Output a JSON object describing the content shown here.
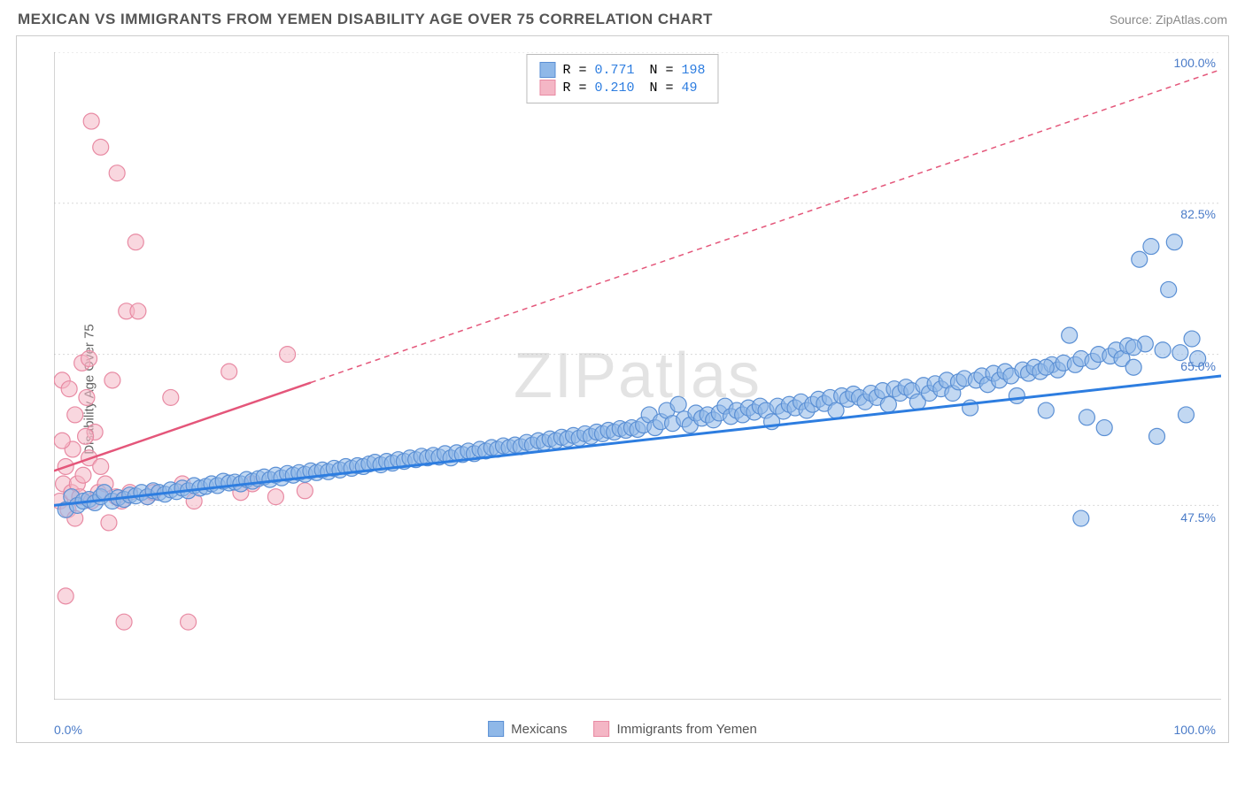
{
  "header": {
    "title": "MEXICAN VS IMMIGRANTS FROM YEMEN DISABILITY AGE OVER 75 CORRELATION CHART",
    "source": "Source: ZipAtlas.com"
  },
  "watermark": "ZIPatlas",
  "chart": {
    "type": "scatter",
    "y_axis_label": "Disability Age Over 75",
    "xlim": [
      0,
      100
    ],
    "ylim": [
      25,
      100
    ],
    "x_ticks": [
      0,
      100
    ],
    "x_tick_labels": [
      "0.0%",
      "100.0%"
    ],
    "y_ticks": [
      47.5,
      65.0,
      82.5,
      100.0
    ],
    "y_tick_labels": [
      "47.5%",
      "65.0%",
      "82.5%",
      "100.0%"
    ],
    "grid_color": "#d8d8d8",
    "background_color": "#ffffff",
    "series": [
      {
        "name": "Mexicans",
        "color_fill": "#8fb8e8",
        "color_stroke": "#5a8fd4",
        "fill_opacity": 0.55,
        "marker_radius": 9,
        "trend_color": "#2d7de0",
        "trend_width": 3,
        "trend_start": [
          0,
          47.5
        ],
        "trend_end": [
          100,
          62.5
        ],
        "R": "0.771",
        "N": "198",
        "points": [
          [
            1,
            47
          ],
          [
            1.5,
            48.5
          ],
          [
            2,
            47.5
          ],
          [
            2.5,
            48
          ],
          [
            3,
            48.2
          ],
          [
            3.5,
            47.8
          ],
          [
            4,
            48.5
          ],
          [
            4.3,
            49
          ],
          [
            5,
            48
          ],
          [
            5.5,
            48.4
          ],
          [
            6,
            48.2
          ],
          [
            6.5,
            48.7
          ],
          [
            7,
            48.6
          ],
          [
            7.5,
            49
          ],
          [
            8,
            48.5
          ],
          [
            8.5,
            49.2
          ],
          [
            9,
            49
          ],
          [
            9.5,
            48.8
          ],
          [
            10,
            49.3
          ],
          [
            10.5,
            49.1
          ],
          [
            11,
            49.5
          ],
          [
            11.5,
            49.2
          ],
          [
            12,
            49.8
          ],
          [
            12.5,
            49.5
          ],
          [
            13,
            49.7
          ],
          [
            13.5,
            50
          ],
          [
            14,
            49.8
          ],
          [
            14.5,
            50.3
          ],
          [
            15,
            50.1
          ],
          [
            15.5,
            50.2
          ],
          [
            16,
            50
          ],
          [
            16.5,
            50.5
          ],
          [
            17,
            50.3
          ],
          [
            17.5,
            50.6
          ],
          [
            18,
            50.8
          ],
          [
            18.5,
            50.5
          ],
          [
            19,
            51
          ],
          [
            19.5,
            50.7
          ],
          [
            20,
            51.2
          ],
          [
            20.5,
            51
          ],
          [
            21,
            51.3
          ],
          [
            21.5,
            51.1
          ],
          [
            22,
            51.5
          ],
          [
            22.5,
            51.3
          ],
          [
            23,
            51.6
          ],
          [
            23.5,
            51.4
          ],
          [
            24,
            51.8
          ],
          [
            24.5,
            51.6
          ],
          [
            25,
            52
          ],
          [
            25.5,
            51.8
          ],
          [
            26,
            52.1
          ],
          [
            26.5,
            52
          ],
          [
            27,
            52.3
          ],
          [
            27.5,
            52.5
          ],
          [
            28,
            52.2
          ],
          [
            28.5,
            52.6
          ],
          [
            29,
            52.4
          ],
          [
            29.5,
            52.8
          ],
          [
            30,
            52.6
          ],
          [
            30.5,
            53
          ],
          [
            31,
            52.8
          ],
          [
            31.5,
            53.2
          ],
          [
            32,
            53
          ],
          [
            32.5,
            53.3
          ],
          [
            33,
            53.1
          ],
          [
            33.5,
            53.5
          ],
          [
            34,
            53
          ],
          [
            34.5,
            53.6
          ],
          [
            35,
            53.4
          ],
          [
            35.5,
            53.8
          ],
          [
            36,
            53.5
          ],
          [
            36.5,
            54
          ],
          [
            37,
            53.8
          ],
          [
            37.5,
            54.2
          ],
          [
            38,
            54
          ],
          [
            38.5,
            54.4
          ],
          [
            39,
            54.2
          ],
          [
            39.5,
            54.5
          ],
          [
            40,
            54.3
          ],
          [
            40.5,
            54.8
          ],
          [
            41,
            54.5
          ],
          [
            41.5,
            55
          ],
          [
            42,
            54.8
          ],
          [
            42.5,
            55.2
          ],
          [
            43,
            55
          ],
          [
            43.5,
            55.4
          ],
          [
            44,
            55.2
          ],
          [
            44.5,
            55.6
          ],
          [
            45,
            55.3
          ],
          [
            45.5,
            55.8
          ],
          [
            46,
            55.5
          ],
          [
            46.5,
            56
          ],
          [
            47,
            55.8
          ],
          [
            47.5,
            56.2
          ],
          [
            48,
            56
          ],
          [
            48.5,
            56.4
          ],
          [
            49,
            56.2
          ],
          [
            49.5,
            56.5
          ],
          [
            50,
            56.3
          ],
          [
            50.5,
            56.8
          ],
          [
            51,
            58
          ],
          [
            51.5,
            56.5
          ],
          [
            52,
            57.2
          ],
          [
            52.5,
            58.5
          ],
          [
            53,
            57
          ],
          [
            53.5,
            59.2
          ],
          [
            54,
            57.5
          ],
          [
            54.5,
            56.8
          ],
          [
            55,
            58.2
          ],
          [
            55.5,
            57.6
          ],
          [
            56,
            58
          ],
          [
            56.5,
            57.4
          ],
          [
            57,
            58.2
          ],
          [
            57.5,
            59
          ],
          [
            58,
            57.8
          ],
          [
            58.5,
            58.5
          ],
          [
            59,
            58
          ],
          [
            59.5,
            58.8
          ],
          [
            60,
            58.3
          ],
          [
            60.5,
            59
          ],
          [
            61,
            58.5
          ],
          [
            61.5,
            57.2
          ],
          [
            62,
            59
          ],
          [
            62.5,
            58.4
          ],
          [
            63,
            59.2
          ],
          [
            63.5,
            58.8
          ],
          [
            64,
            59.5
          ],
          [
            64.5,
            58.5
          ],
          [
            65,
            59.2
          ],
          [
            65.5,
            59.8
          ],
          [
            66,
            59.3
          ],
          [
            66.5,
            60
          ],
          [
            67,
            58.5
          ],
          [
            67.5,
            60.2
          ],
          [
            68,
            59.8
          ],
          [
            68.5,
            60.4
          ],
          [
            69,
            60
          ],
          [
            69.5,
            59.5
          ],
          [
            70,
            60.5
          ],
          [
            70.5,
            60
          ],
          [
            71,
            60.8
          ],
          [
            71.5,
            59.2
          ],
          [
            72,
            61
          ],
          [
            72.5,
            60.5
          ],
          [
            73,
            61.2
          ],
          [
            73.5,
            60.8
          ],
          [
            74,
            59.5
          ],
          [
            74.5,
            61.4
          ],
          [
            75,
            60.5
          ],
          [
            75.5,
            61.6
          ],
          [
            76,
            61
          ],
          [
            76.5,
            62
          ],
          [
            77,
            60.5
          ],
          [
            77.5,
            61.8
          ],
          [
            78,
            62.2
          ],
          [
            78.5,
            58.8
          ],
          [
            79,
            62
          ],
          [
            79.5,
            62.5
          ],
          [
            80,
            61.5
          ],
          [
            80.5,
            62.8
          ],
          [
            81,
            62
          ],
          [
            81.5,
            63
          ],
          [
            82,
            62.5
          ],
          [
            82.5,
            60.2
          ],
          [
            83,
            63.2
          ],
          [
            83.5,
            62.8
          ],
          [
            84,
            63.5
          ],
          [
            84.5,
            63
          ],
          [
            85,
            58.5
          ],
          [
            85.5,
            63.8
          ],
          [
            86,
            63.2
          ],
          [
            86.5,
            64
          ],
          [
            87,
            67.2
          ],
          [
            87.5,
            63.8
          ],
          [
            88,
            64.5
          ],
          [
            88.5,
            57.7
          ],
          [
            89,
            64.2
          ],
          [
            89.5,
            65
          ],
          [
            90,
            56.5
          ],
          [
            90.5,
            64.8
          ],
          [
            91,
            65.5
          ],
          [
            91.5,
            64.5
          ],
          [
            92,
            66
          ],
          [
            92.5,
            63.5
          ],
          [
            93,
            76
          ],
          [
            93.5,
            66.2
          ],
          [
            94,
            77.5
          ],
          [
            94.5,
            55.5
          ],
          [
            95,
            65.5
          ],
          [
            95.5,
            72.5
          ],
          [
            96,
            78
          ],
          [
            96.5,
            65.2
          ],
          [
            97,
            58
          ],
          [
            97.5,
            66.8
          ],
          [
            98,
            64.5
          ],
          [
            92.5,
            65.8
          ],
          [
            88,
            46
          ],
          [
            85,
            63.5
          ]
        ]
      },
      {
        "name": "Immigrants from Yemen",
        "color_fill": "#f4b6c5",
        "color_stroke": "#e88aa3",
        "fill_opacity": 0.55,
        "marker_radius": 9,
        "trend_color": "#e4567a",
        "trend_width": 2.5,
        "trend_dash_from": 22,
        "trend_start": [
          0,
          51.5
        ],
        "trend_end": [
          100,
          98
        ],
        "R": "0.210",
        "N": " 49",
        "points": [
          [
            0.5,
            48
          ],
          [
            0.7,
            62
          ],
          [
            0.8,
            50
          ],
          [
            1,
            52
          ],
          [
            1.2,
            47
          ],
          [
            1.3,
            61
          ],
          [
            1.5,
            49
          ],
          [
            1.6,
            54
          ],
          [
            1.8,
            58
          ],
          [
            2,
            50
          ],
          [
            0.7,
            55
          ],
          [
            2.2,
            48.5
          ],
          [
            2.4,
            64
          ],
          [
            2.5,
            51
          ],
          [
            2.8,
            60
          ],
          [
            3,
            53
          ],
          [
            3.2,
            48
          ],
          [
            3.5,
            56
          ],
          [
            3.8,
            49
          ],
          [
            4,
            52
          ],
          [
            4.4,
            50
          ],
          [
            4.7,
            45.5
          ],
          [
            5,
            62
          ],
          [
            5.3,
            48.5
          ],
          [
            1.8,
            46
          ],
          [
            5.8,
            48
          ],
          [
            6,
            34
          ],
          [
            6.2,
            70
          ],
          [
            6.5,
            49
          ],
          [
            7,
            78
          ],
          [
            7.2,
            70
          ],
          [
            8,
            48.5
          ],
          [
            8.5,
            49
          ],
          [
            3,
            64.5
          ],
          [
            10,
            60
          ],
          [
            11,
            50
          ],
          [
            11.5,
            34
          ],
          [
            12,
            48
          ],
          [
            5.4,
            86
          ],
          [
            4,
            89
          ],
          [
            15,
            63
          ],
          [
            16,
            49
          ],
          [
            17,
            50
          ],
          [
            19,
            48.5
          ],
          [
            20,
            65
          ],
          [
            21.5,
            49.2
          ],
          [
            3.2,
            92
          ],
          [
            1,
            37
          ],
          [
            2.7,
            55.5
          ]
        ]
      }
    ],
    "legend_bottom": [
      {
        "label": "Mexicans",
        "fill": "#8fb8e8",
        "stroke": "#5a8fd4"
      },
      {
        "label": "Immigrants from Yemen",
        "fill": "#f4b6c5",
        "stroke": "#e88aa3"
      }
    ],
    "x_minor_tick_positions": [
      10,
      35,
      47,
      70,
      85
    ]
  }
}
